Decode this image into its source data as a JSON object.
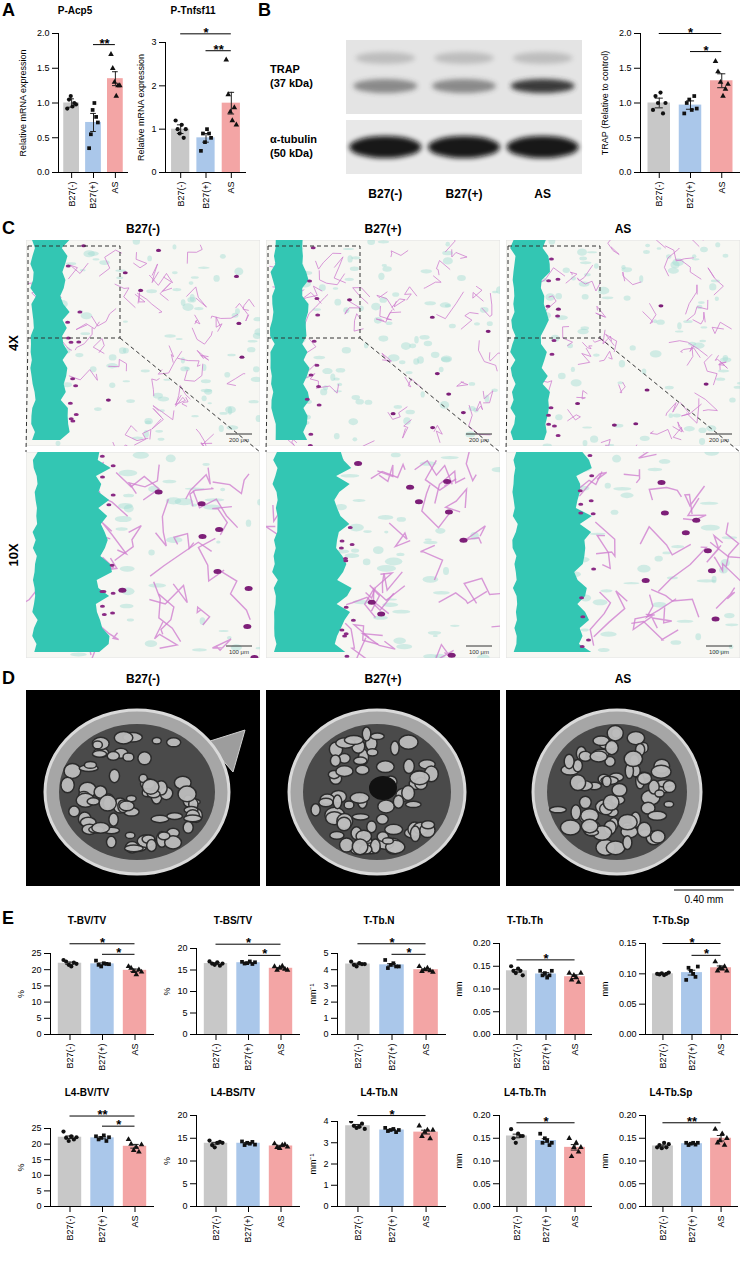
{
  "panel_letters": [
    "A",
    "B",
    "C",
    "D",
    "E"
  ],
  "chart_data": [
    {
      "type": "bar",
      "title": "P-Acp5",
      "y_label": "Relative mRNA expression",
      "categories": [
        "B27(-)",
        "B27(+)",
        "AS"
      ],
      "values": [
        1.0,
        0.72,
        1.35
      ],
      "errors": [
        0.06,
        0.13,
        0.1
      ],
      "points": [
        [
          0.92,
          1.05,
          1.1,
          0.95,
          1.0,
          0.98
        ],
        [
          0.35,
          0.55,
          0.9,
          1.0,
          0.8,
          0.72
        ],
        [
          1.7,
          1.5,
          1.3,
          1.1,
          1.25,
          1.25
        ]
      ],
      "colors": [
        "#c8c8c8",
        "#aac7ea",
        "#f3a5a5"
      ],
      "ylim": [
        0,
        2
      ],
      "yticks": [
        {
          "value": 0,
          "label": "0.0"
        },
        0.5,
        {
          "value": 1,
          "label": "1.0"
        },
        1.5,
        {
          "value": 2,
          "label": "2.0"
        }
      ],
      "annotations": [
        {
          "between": [
            "B27(+)",
            "AS"
          ],
          "text": "**"
        }
      ]
    },
    {
      "type": "bar",
      "title": "P-Tnfsf11",
      "y_label": "Relative mRNA expression",
      "categories": [
        "B27(-)",
        "B27(+)",
        "AS"
      ],
      "values": [
        1.0,
        0.8,
        1.6
      ],
      "errors": [
        0.1,
        0.1,
        0.25
      ],
      "points": [
        [
          1.2,
          1.0,
          0.9,
          1.1,
          0.8,
          1.0
        ],
        [
          0.5,
          0.9,
          0.7,
          1.0,
          0.9,
          0.8
        ],
        [
          2.6,
          1.8,
          1.4,
          1.2,
          1.5,
          1.1
        ]
      ],
      "colors": [
        "#c8c8c8",
        "#aac7ea",
        "#f3a5a5"
      ],
      "ylim": [
        0,
        3
      ],
      "yticks": [
        0,
        1,
        2,
        3
      ],
      "annotations": [
        {
          "between": [
            "B27(+)",
            "AS"
          ],
          "text": "**"
        },
        {
          "between": [
            "B27(-)",
            "AS"
          ],
          "text": "*"
        }
      ]
    },
    {
      "type": "bar",
      "y_label": "TRAP (Relative to control)",
      "categories": [
        "B27(-)",
        "B27(+)",
        "AS"
      ],
      "values": [
        1.0,
        0.97,
        1.32
      ],
      "errors": [
        0.07,
        0.06,
        0.1
      ],
      "points": [
        [
          0.9,
          1.1,
          1.0,
          1.15,
          0.85,
          1.0
        ],
        [
          0.85,
          1.0,
          1.05,
          0.9,
          1.1,
          0.92
        ],
        [
          1.6,
          1.45,
          1.3,
          1.1,
          1.2,
          1.27
        ]
      ],
      "colors": [
        "#c8c8c8",
        "#aac7ea",
        "#f3a5a5"
      ],
      "ylim": [
        0,
        2
      ],
      "yticks": [
        {
          "value": 0,
          "label": "0.0"
        },
        0.5,
        {
          "value": 1,
          "label": "1.0"
        },
        1.5,
        {
          "value": 2,
          "label": "2.0"
        }
      ],
      "annotations": [
        {
          "between": [
            "B27(+)",
            "AS"
          ],
          "text": "*"
        },
        {
          "between": [
            "B27(-)",
            "AS"
          ],
          "text": "*"
        }
      ]
    },
    {
      "type": "bar",
      "title": "T-BV/TV",
      "y_label": "%",
      "categories": [
        "B27(-)",
        "B27(+)",
        "AS"
      ],
      "values": [
        22.0,
        21.8,
        19.8
      ],
      "errors": [
        0.35,
        0.3,
        0.4
      ],
      "points": [
        [
          23.0,
          22.5,
          21.5,
          21.0,
          22.2,
          21.8
        ],
        [
          22.8,
          21.5,
          21.0,
          22.0,
          21.8,
          21.7
        ],
        [
          21.0,
          20.5,
          19.5,
          18.5,
          20.0,
          19.3
        ]
      ],
      "colors": [
        "#c8c8c8",
        "#aac7ea",
        "#f3a5a5"
      ],
      "ylim": [
        0,
        25
      ],
      "yticks": [
        0,
        5,
        10,
        15,
        20,
        25
      ],
      "annotations": [
        {
          "between": [
            "B27(+)",
            "AS"
          ],
          "text": "*"
        },
        {
          "between": [
            "B27(-)",
            "AS"
          ],
          "text": "*"
        }
      ]
    },
    {
      "type": "bar",
      "title": "T-BS/TV",
      "y_label": "%",
      "categories": [
        "B27(-)",
        "B27(+)",
        "AS"
      ],
      "values": [
        16.5,
        16.7,
        15.4
      ],
      "errors": [
        0.2,
        0.1,
        0.15
      ],
      "points": [
        [
          17.0,
          16.5,
          16.2,
          16.8,
          16.0,
          16.5
        ],
        [
          16.9,
          16.5,
          16.6,
          17.0,
          16.4,
          16.8
        ],
        [
          15.8,
          15.0,
          15.5,
          15.9,
          15.2,
          15.0
        ]
      ],
      "colors": [
        "#c8c8c8",
        "#aac7ea",
        "#f3a5a5"
      ],
      "ylim": [
        0,
        20
      ],
      "yticks": [
        0,
        5,
        10,
        15,
        20
      ],
      "annotations": [
        {
          "between": [
            "B27(+)",
            "AS"
          ],
          "text": "*"
        },
        {
          "between": [
            "B27(-)",
            "AS"
          ],
          "text": "*"
        }
      ]
    },
    {
      "type": "bar",
      "title": "T-Tb.N",
      "y_label": "mm⁻¹",
      "categories": [
        "B27(-)",
        "B27(+)",
        "AS"
      ],
      "values": [
        4.35,
        4.3,
        4.0
      ],
      "errors": [
        0.05,
        0.07,
        0.05
      ],
      "points": [
        [
          4.5,
          4.3,
          4.2,
          4.4,
          4.35,
          4.35
        ],
        [
          4.6,
          4.1,
          4.3,
          4.4,
          4.2,
          4.2
        ],
        [
          4.2,
          3.9,
          4.0,
          4.1,
          3.95,
          3.85
        ]
      ],
      "colors": [
        "#c8c8c8",
        "#aac7ea",
        "#f3a5a5"
      ],
      "ylim": [
        0,
        5
      ],
      "yticks": [
        0,
        1,
        2,
        3,
        4,
        5
      ],
      "annotations": [
        {
          "between": [
            "B27(+)",
            "AS"
          ],
          "text": "*"
        },
        {
          "between": [
            "B27(-)",
            "AS"
          ],
          "text": "*"
        }
      ]
    },
    {
      "type": "bar",
      "title": "T-Tb.Th",
      "y_label": "mm",
      "categories": [
        "B27(-)",
        "B27(+)",
        "AS"
      ],
      "values": [
        0.14,
        0.133,
        0.127
      ],
      "errors": [
        0.003,
        0.003,
        0.004
      ],
      "points": [
        [
          0.15,
          0.14,
          0.135,
          0.145,
          0.14,
          0.13
        ],
        [
          0.14,
          0.13,
          0.135,
          0.125,
          0.13,
          0.14
        ],
        [
          0.135,
          0.12,
          0.13,
          0.125,
          0.115,
          0.135
        ]
      ],
      "colors": [
        "#c8c8c8",
        "#aac7ea",
        "#f3a5a5"
      ],
      "ylim": [
        0,
        0.2
      ],
      "yticks": [
        {
          "value": 0,
          "label": "0.00"
        },
        0.05,
        {
          "value": 0.1,
          "label": "0.10"
        },
        0.15,
        {
          "value": 0.2,
          "label": "0.20"
        }
      ],
      "annotations": [
        {
          "between": [
            "B27(-)",
            "AS"
          ],
          "text": "*"
        }
      ]
    },
    {
      "type": "bar",
      "title": "T-Tb.Sp",
      "y_label": "mm",
      "categories": [
        "B27(-)",
        "B27(+)",
        "AS"
      ],
      "values": [
        0.1,
        0.102,
        0.11
      ],
      "errors": [
        0.001,
        0.004,
        0.003
      ],
      "points": [
        [
          0.1,
          0.099,
          0.101,
          0.098,
          0.1,
          0.102
        ],
        [
          0.09,
          0.11,
          0.105,
          0.1,
          0.095,
          0.112
        ],
        [
          0.12,
          0.105,
          0.11,
          0.108,
          0.112,
          0.105
        ]
      ],
      "colors": [
        "#c8c8c8",
        "#aac7ea",
        "#f3a5a5"
      ],
      "ylim": [
        0,
        0.15
      ],
      "yticks": [
        {
          "value": 0,
          "label": "0.00"
        },
        0.05,
        {
          "value": 0.1,
          "label": "0.10"
        },
        0.15
      ],
      "annotations": [
        {
          "between": [
            "B27(+)",
            "AS"
          ],
          "text": "*"
        },
        {
          "between": [
            "B27(-)",
            "AS"
          ],
          "text": "*"
        }
      ]
    },
    {
      "type": "bar",
      "title": "L4-BV/TV",
      "y_label": "%",
      "categories": [
        "B27(-)",
        "B27(+)",
        "AS"
      ],
      "values": [
        22.2,
        22.0,
        19.3
      ],
      "errors": [
        0.4,
        0.3,
        0.6
      ],
      "points": [
        [
          24.0,
          22.0,
          21.0,
          22.5,
          21.5,
          22.2
        ],
        [
          22.5,
          21.5,
          22.0,
          22.8,
          21.0,
          22.2
        ],
        [
          21.5,
          20.0,
          18.0,
          19.0,
          17.5,
          19.8
        ]
      ],
      "colors": [
        "#c8c8c8",
        "#aac7ea",
        "#f3a5a5"
      ],
      "ylim": [
        0,
        25
      ],
      "yticks": [
        0,
        5,
        10,
        15,
        20,
        25
      ],
      "annotations": [
        {
          "between": [
            "B27(+)",
            "AS"
          ],
          "text": "*"
        },
        {
          "between": [
            "B27(-)",
            "AS"
          ],
          "text": "**"
        }
      ]
    },
    {
      "type": "bar",
      "title": "L4-BS/TV",
      "y_label": "%",
      "categories": [
        "B27(-)",
        "B27(+)",
        "AS"
      ],
      "values": [
        13.9,
        13.9,
        13.3
      ],
      "errors": [
        0.2,
        0.15,
        0.15
      ],
      "points": [
        [
          14.5,
          13.5,
          13.0,
          14.0,
          14.2,
          14.0
        ],
        [
          14.3,
          13.5,
          14.0,
          13.8,
          14.2,
          13.6
        ],
        [
          13.8,
          13.0,
          12.8,
          13.5,
          13.6,
          13.1
        ]
      ],
      "colors": [
        "#c8c8c8",
        "#aac7ea",
        "#f3a5a5"
      ],
      "ylim": [
        0,
        20
      ],
      "yticks": [
        0,
        5,
        10,
        15,
        20
      ],
      "annotations": []
    },
    {
      "type": "bar",
      "title": "L4-Tb.N",
      "y_label": "mm⁻¹",
      "categories": [
        "B27(-)",
        "B27(+)",
        "AS"
      ],
      "values": [
        3.8,
        3.6,
        3.5
      ],
      "errors": [
        0.06,
        0.03,
        0.09
      ],
      "points": [
        [
          4.0,
          3.8,
          3.7,
          3.75,
          3.9,
          3.65
        ],
        [
          3.7,
          3.55,
          3.6,
          3.65,
          3.5,
          3.6
        ],
        [
          3.8,
          3.3,
          3.5,
          3.6,
          3.2,
          3.6
        ]
      ],
      "colors": [
        "#c8c8c8",
        "#aac7ea",
        "#f3a5a5"
      ],
      "ylim": [
        0,
        4
      ],
      "yticks": [
        0,
        1,
        2,
        3,
        4
      ],
      "annotations": [
        {
          "between": [
            "B27(-)",
            "AS"
          ],
          "text": "*"
        }
      ]
    },
    {
      "type": "bar",
      "title": "L4-Tb.Th",
      "y_label": "mm",
      "categories": [
        "B27(-)",
        "B27(+)",
        "AS"
      ],
      "values": [
        0.155,
        0.145,
        0.13
      ],
      "errors": [
        0.004,
        0.004,
        0.006
      ],
      "points": [
        [
          0.17,
          0.15,
          0.14,
          0.16,
          0.155,
          0.155
        ],
        [
          0.16,
          0.14,
          0.15,
          0.145,
          0.135,
          0.14
        ],
        [
          0.15,
          0.11,
          0.13,
          0.14,
          0.12,
          0.13
        ]
      ],
      "colors": [
        "#c8c8c8",
        "#aac7ea",
        "#f3a5a5"
      ],
      "ylim": [
        0,
        0.2
      ],
      "yticks": [
        {
          "value": 0,
          "label": "0.00"
        },
        0.05,
        {
          "value": 0.1,
          "label": "0.10"
        },
        0.15,
        {
          "value": 0.2,
          "label": "0.20"
        }
      ],
      "annotations": [
        {
          "between": [
            "B27(-)",
            "AS"
          ],
          "text": "*"
        }
      ]
    },
    {
      "type": "bar",
      "title": "L4-Tb.Sp",
      "y_label": "mm",
      "categories": [
        "B27(-)",
        "B27(+)",
        "AS"
      ],
      "values": [
        0.133,
        0.138,
        0.15
      ],
      "errors": [
        0.002,
        0.001,
        0.006
      ],
      "points": [
        [
          0.13,
          0.135,
          0.128,
          0.14,
          0.13,
          0.137
        ],
        [
          0.14,
          0.135,
          0.138,
          0.14,
          0.136,
          0.14
        ],
        [
          0.17,
          0.14,
          0.145,
          0.16,
          0.135,
          0.15
        ]
      ],
      "colors": [
        "#c8c8c8",
        "#aac7ea",
        "#f3a5a5"
      ],
      "ylim": [
        0,
        0.2
      ],
      "yticks": [
        {
          "value": 0,
          "label": "0.00"
        },
        0.05,
        {
          "value": 0.1,
          "label": "0.10"
        },
        0.15,
        {
          "value": 0.2,
          "label": "0.20"
        }
      ],
      "annotations": [
        {
          "between": [
            "B27(-)",
            "AS"
          ],
          "text": "**"
        }
      ]
    }
  ],
  "blot": {
    "rows": [
      {
        "label": [
          "TRAP",
          "(37 kDa)"
        ]
      },
      {
        "label": [
          "α-tubulin",
          "(50 kDa)"
        ]
      }
    ],
    "lanes": [
      "B27(-)",
      "B27(+)",
      "AS"
    ]
  },
  "histology": {
    "columns": [
      "B27(-)",
      "B27(+)",
      "AS"
    ],
    "rows": [
      {
        "label": "4X",
        "scale_bar": "200 μm"
      },
      {
        "label": "10X",
        "scale_bar": "100 μm"
      }
    ]
  },
  "microct": {
    "columns": [
      "B27(-)",
      "B27(+)",
      "AS"
    ],
    "scale_bar": "0.40 mm"
  }
}
